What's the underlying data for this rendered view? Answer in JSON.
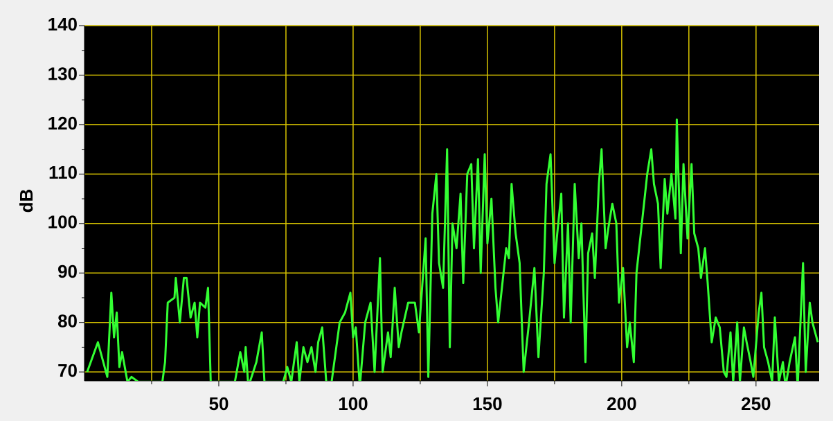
{
  "chart_data": {
    "type": "line",
    "y_label": "dB",
    "x": [
      1,
      5,
      7,
      8.5,
      10,
      11,
      12,
      13,
      14,
      16,
      17.5,
      20,
      29,
      30,
      31,
      33.5,
      34,
      35.5,
      37,
      38,
      39.5,
      41,
      42,
      43,
      45,
      46,
      47,
      56,
      57,
      58,
      59.5,
      60,
      61,
      64,
      66,
      67,
      74,
      75.5,
      77,
      79,
      80,
      81.5,
      83,
      84.5,
      86,
      87,
      88.5,
      90,
      92,
      95,
      97,
      99,
      100,
      101,
      102.5,
      104.5,
      106.5,
      108,
      110,
      111,
      113,
      114,
      115.5,
      117,
      118,
      120.5,
      123,
      124.5,
      127,
      128,
      129.5,
      131,
      132,
      133.5,
      135,
      136,
      137,
      138.5,
      140,
      141,
      142.5,
      144,
      145,
      146.5,
      147.5,
      149,
      150,
      151.5,
      153,
      154,
      157,
      158,
      159,
      160.5,
      162,
      163.5,
      165.5,
      167.5,
      169,
      171,
      172,
      173.5,
      175,
      176,
      177.5,
      178.5,
      180,
      181,
      182.5,
      184,
      185,
      186.5,
      187.5,
      189,
      190,
      191.5,
      192.5,
      194,
      195,
      196.5,
      198,
      199,
      200.5,
      202,
      203,
      204.5,
      205.5,
      207.5,
      209.5,
      211,
      212,
      213.5,
      214.5,
      216,
      217,
      218.5,
      220,
      220.5,
      222,
      223,
      224.5,
      226,
      227,
      228.5,
      229.5,
      231,
      232,
      233.5,
      235,
      236.5,
      238,
      239,
      240.5,
      241.5,
      243,
      244,
      245.5,
      246.5,
      248,
      249,
      251,
      252,
      253,
      254.5,
      256,
      257,
      258.5,
      260,
      261,
      262.5,
      264.5,
      265.5,
      267.5,
      268.5,
      270,
      271,
      273
    ],
    "values": [
      70,
      76,
      72,
      69,
      86,
      77,
      82,
      71,
      74,
      68,
      69,
      68,
      68,
      72,
      84,
      85,
      89,
      80,
      89,
      89,
      81,
      84,
      77,
      84,
      83,
      87,
      68,
      68,
      71,
      74,
      70,
      75,
      67,
      72,
      78,
      68,
      68,
      71,
      68,
      76,
      68,
      75,
      72,
      75,
      70,
      76,
      79,
      68,
      68,
      80,
      82,
      86,
      77,
      79,
      67,
      80,
      84,
      70,
      93,
      70,
      78,
      73,
      87,
      75,
      78,
      84,
      84,
      78,
      97,
      69,
      102,
      110,
      92,
      87,
      115,
      75,
      100,
      95,
      106,
      88,
      110,
      112,
      95,
      113,
      90,
      114,
      96,
      105,
      87,
      80,
      95,
      93,
      108,
      98,
      92,
      70,
      80,
      91,
      73,
      90,
      108,
      114,
      92,
      98,
      106,
      81,
      100,
      80,
      108,
      93,
      100,
      72,
      94,
      98,
      89,
      108,
      115,
      95,
      99,
      104,
      100,
      84,
      91,
      75,
      80,
      72,
      90,
      100,
      110,
      115,
      108,
      104,
      91,
      109,
      102,
      110,
      101,
      121,
      94,
      112,
      97,
      112,
      98,
      95,
      89,
      95,
      88,
      76,
      81,
      79,
      70,
      69,
      78,
      68,
      80,
      68,
      79,
      76,
      72,
      69,
      82,
      86,
      75,
      72,
      68,
      81,
      68,
      72,
      67,
      72,
      77,
      67,
      92,
      70,
      84,
      80,
      76
    ],
    "color": "#33ff33",
    "xlim": [
      0,
      273.5
    ],
    "xticks": [
      50,
      100,
      150,
      200,
      250
    ],
    "x_minor_ticks": [
      25,
      75,
      125,
      175,
      225
    ],
    "ylim": [
      68.2,
      140
    ],
    "yticks": [
      70,
      80,
      90,
      100,
      110,
      120,
      130,
      140
    ],
    "y_minor_ticks": [
      75,
      85,
      95,
      105,
      115,
      125,
      135
    ],
    "grid": true,
    "grid_color": "#d8c400",
    "background": "#000000"
  }
}
